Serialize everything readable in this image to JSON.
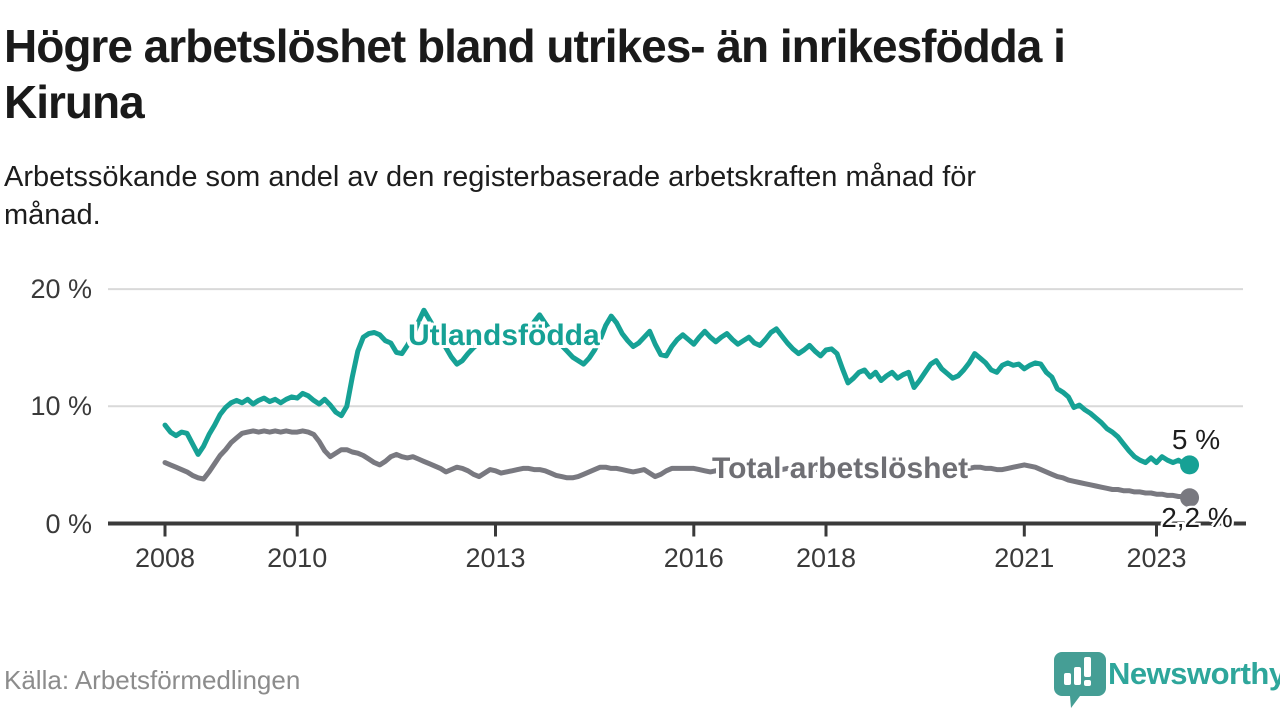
{
  "header": {
    "title_lines": [
      "Högre arbetslöshet bland utrikes- än inrikesfödda i",
      "Kiruna"
    ],
    "subtitle_lines": [
      "Arbetssökande som andel av den registerbaserade arbetskraften månad för",
      "månad."
    ]
  },
  "footer": {
    "source": "Källa: Arbetsförmedlingen",
    "brand": "Newsworthy"
  },
  "colors": {
    "teal_line": "#16a195",
    "gray_line": "#797980",
    "gray_label": "#6f6f74",
    "axis": "#3a3a3a",
    "grid": "#d9d9d9",
    "text_dark": "#1d1d1d",
    "brand_teal": "#2ea69b",
    "brand_bubble": "#459e95"
  },
  "chart_data": {
    "type": "line",
    "title": "Högre arbetslöshet bland utrikes- än inrikesfödda i Kiruna",
    "subtitle": "Arbetssökande som andel av den registerbaserade arbetskraften månad för månad.",
    "x_unit": "month",
    "x_range": "2008-01 to 2023-07",
    "x_ticks": [
      2008,
      2010,
      2013,
      2016,
      2018,
      2021,
      2023
    ],
    "x_tick_labels": [
      "2008",
      "2010",
      "2013",
      "2016",
      "2018",
      "2021",
      "2023"
    ],
    "y_ticks": [
      0,
      10,
      20
    ],
    "y_tick_labels": [
      "0 %",
      "10 %",
      "20 %"
    ],
    "ylim": [
      0,
      21.5
    ],
    "grid": "horizontal",
    "legend_position": "inline-labels",
    "series": [
      {
        "name": "Utlandsfödda",
        "color": "#16a195",
        "end_label": "5 %",
        "end_value": 5.0,
        "values": [
          8.4,
          7.8,
          7.5,
          7.8,
          7.7,
          6.8,
          5.9,
          6.6,
          7.6,
          8.4,
          9.3,
          9.9,
          10.3,
          10.5,
          10.3,
          10.6,
          10.2,
          10.5,
          10.7,
          10.4,
          10.6,
          10.3,
          10.6,
          10.8,
          10.7,
          11.1,
          10.9,
          10.5,
          10.2,
          10.6,
          10.1,
          9.5,
          9.2,
          10.0,
          12.5,
          14.7,
          15.9,
          16.2,
          16.3,
          16.1,
          15.6,
          15.4,
          14.6,
          14.5,
          15.2,
          16.0,
          17.2,
          18.2,
          17.4,
          16.6,
          15.9,
          15.0,
          14.2,
          13.6,
          13.9,
          14.5,
          15.0,
          15.4,
          15.7,
          16.0,
          15.8,
          15.5,
          15.7,
          16.0,
          15.6,
          15.9,
          16.5,
          17.2,
          17.8,
          17.1,
          16.4,
          15.8,
          15.2,
          14.7,
          14.2,
          13.9,
          13.6,
          14.1,
          14.8,
          15.7,
          16.9,
          17.7,
          17.1,
          16.2,
          15.6,
          15.1,
          15.4,
          15.9,
          16.4,
          15.3,
          14.4,
          14.3,
          15.1,
          15.7,
          16.1,
          15.7,
          15.3,
          15.9,
          16.4,
          15.9,
          15.5,
          15.9,
          16.2,
          15.7,
          15.3,
          15.6,
          15.9,
          15.4,
          15.2,
          15.7,
          16.3,
          16.6,
          16.0,
          15.4,
          14.9,
          14.5,
          14.8,
          15.2,
          14.7,
          14.3,
          14.8,
          14.9,
          14.5,
          13.2,
          12.0,
          12.4,
          12.9,
          13.1,
          12.5,
          12.9,
          12.2,
          12.6,
          12.9,
          12.4,
          12.7,
          12.9,
          11.6,
          12.2,
          12.9,
          13.6,
          13.9,
          13.2,
          12.8,
          12.4,
          12.6,
          13.1,
          13.7,
          14.5,
          14.1,
          13.7,
          13.1,
          12.9,
          13.5,
          13.7,
          13.5,
          13.6,
          13.2,
          13.5,
          13.7,
          13.6,
          12.9,
          12.5,
          11.5,
          11.2,
          10.8,
          9.9,
          10.1,
          9.7,
          9.4,
          9.0,
          8.6,
          8.1,
          7.8,
          7.4,
          6.8,
          6.2,
          5.7,
          5.4,
          5.2,
          5.6,
          5.2,
          5.7,
          5.4,
          5.2,
          5.4,
          5.1,
          5.0
        ]
      },
      {
        "name": "Total arbetslöshet",
        "color": "#797980",
        "end_label": "2,2 %",
        "end_value": 2.2,
        "values": [
          5.2,
          5.0,
          4.8,
          4.6,
          4.4,
          4.1,
          3.9,
          3.8,
          4.4,
          5.1,
          5.8,
          6.3,
          6.9,
          7.3,
          7.7,
          7.8,
          7.9,
          7.8,
          7.9,
          7.8,
          7.9,
          7.8,
          7.9,
          7.8,
          7.8,
          7.9,
          7.8,
          7.6,
          7.0,
          6.2,
          5.7,
          6.0,
          6.3,
          6.3,
          6.1,
          6.0,
          5.8,
          5.5,
          5.2,
          5.0,
          5.3,
          5.7,
          5.9,
          5.7,
          5.6,
          5.7,
          5.5,
          5.3,
          5.1,
          4.9,
          4.7,
          4.4,
          4.6,
          4.8,
          4.7,
          4.5,
          4.2,
          4.0,
          4.3,
          4.6,
          4.5,
          4.3,
          4.4,
          4.5,
          4.6,
          4.7,
          4.7,
          4.6,
          4.6,
          4.5,
          4.3,
          4.1,
          4.0,
          3.9,
          3.9,
          4.0,
          4.2,
          4.4,
          4.6,
          4.8,
          4.8,
          4.7,
          4.7,
          4.6,
          4.5,
          4.4,
          4.5,
          4.6,
          4.3,
          4.0,
          4.2,
          4.5,
          4.7,
          4.7,
          4.7,
          4.7,
          4.7,
          4.6,
          4.5,
          4.4,
          4.5,
          4.6,
          4.5,
          4.4,
          4.3,
          4.4,
          4.5,
          4.6,
          4.6,
          4.5,
          4.4,
          4.5,
          4.6,
          4.7,
          4.6,
          4.5,
          4.4,
          4.5,
          4.6,
          4.7,
          4.7,
          4.6,
          4.5,
          4.4,
          4.5,
          4.6,
          4.7,
          4.6,
          4.5,
          4.6,
          4.7,
          4.7,
          4.8,
          4.7,
          4.6,
          4.7,
          4.8,
          4.7,
          4.6,
          4.7,
          4.8,
          4.7,
          4.7,
          4.8,
          4.8,
          4.7,
          4.7,
          4.8,
          4.8,
          4.7,
          4.7,
          4.6,
          4.6,
          4.7,
          4.8,
          4.9,
          5.0,
          4.9,
          4.8,
          4.6,
          4.4,
          4.2,
          4.0,
          3.9,
          3.7,
          3.6,
          3.5,
          3.4,
          3.3,
          3.2,
          3.1,
          3.0,
          2.9,
          2.9,
          2.8,
          2.8,
          2.7,
          2.7,
          2.6,
          2.6,
          2.5,
          2.5,
          2.4,
          2.4,
          2.3,
          2.3,
          2.2
        ]
      }
    ]
  }
}
